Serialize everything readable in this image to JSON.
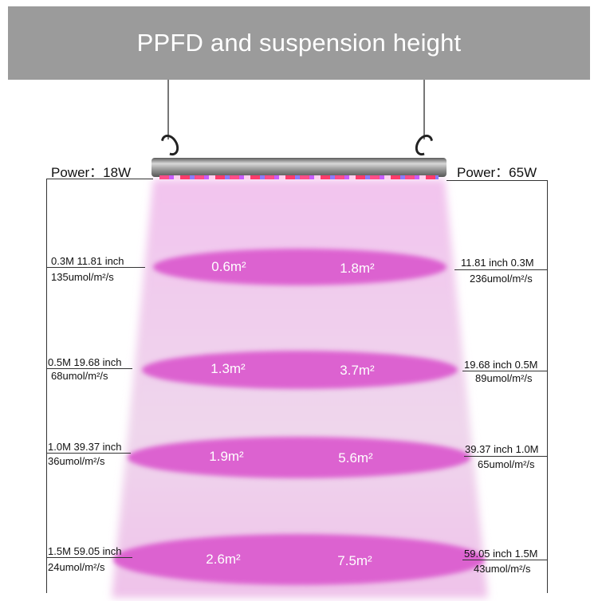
{
  "title": "PPFD and suspension height",
  "power_left": "Power：18W",
  "power_right": "Power：65W",
  "colors": {
    "title_bg": "#9b9b9b",
    "beam": "#f0c6ec",
    "spot": "#dc62d0"
  },
  "rows": [
    {
      "left_top": "0.3M  11.81 inch",
      "left_bottom": "135umol/m²/s",
      "right_top": "11.81 inch  0.3M",
      "right_bottom": "236umol/m²/s",
      "area_left": "0.6m²",
      "area_right": "1.8m²"
    },
    {
      "left_top": "0.5M 19.68 inch",
      "left_bottom": "68umol/m²/s",
      "right_top": "19.68 inch 0.5M",
      "right_bottom": "89umol/m²/s",
      "area_left": "1.3m²",
      "area_right": "3.7m²"
    },
    {
      "left_top": "1.0M 39.37 inch",
      "left_bottom": "36umol/m²/s",
      "right_top": "39.37 inch 1.0M",
      "right_bottom": "65umol/m²/s",
      "area_left": "1.9m²",
      "area_right": "5.6m²"
    },
    {
      "left_top": "1.5M  59.05 inch",
      "left_bottom": "24umol/m²/s",
      "right_top": "59.05 inch  1.5M",
      "right_bottom": "43umol/m²/s",
      "area_left": "2.6m²",
      "area_right": "7.5m²"
    }
  ]
}
